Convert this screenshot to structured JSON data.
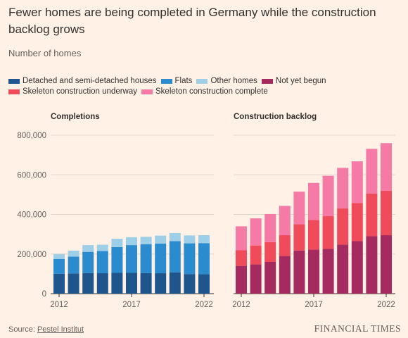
{
  "header": {
    "title": "Fewer homes are being completed in Germany while the construction backlog grows",
    "subtitle": "Number of homes"
  },
  "legend": [
    {
      "label": "Detached and semi-detached houses",
      "color": "#1e558c"
    },
    {
      "label": "Flats",
      "color": "#2a8bce"
    },
    {
      "label": "Other homes",
      "color": "#9dcfe8"
    },
    {
      "label": "Not yet begun",
      "color": "#a52a5f"
    },
    {
      "label": "Skeleton construction underway",
      "color": "#ef4b5b"
    },
    {
      "label": "Skeleton construction complete",
      "color": "#f57aa6"
    }
  ],
  "footer": {
    "source_prefix": "Source: ",
    "source_name": "Pestel Institut",
    "brand": "FINANCIAL TIMES"
  },
  "chart_data": [
    {
      "type": "bar",
      "stacked": true,
      "title": "Completions",
      "x": [
        2012,
        2013,
        2014,
        2015,
        2016,
        2017,
        2018,
        2019,
        2020,
        2021,
        2022
      ],
      "x_tick_labels": [
        "2012",
        "2017",
        "2022"
      ],
      "y_ticks": [
        0,
        200000,
        400000,
        600000,
        800000
      ],
      "y_tick_labels": [
        "0",
        "200,000",
        "400,000",
        "600,000",
        "800,000"
      ],
      "ylim": [
        0,
        820000
      ],
      "grid": true,
      "series": [
        {
          "name": "Detached and semi-detached houses",
          "color": "#1e558c",
          "values": [
            100000,
            102000,
            104000,
            103000,
            105000,
            105000,
            104000,
            103000,
            107000,
            99000,
            98000
          ]
        },
        {
          "name": "Flats",
          "color": "#2a8bce",
          "values": [
            75000,
            85000,
            107000,
            112000,
            130000,
            140000,
            145000,
            150000,
            158000,
            155000,
            157000
          ]
        },
        {
          "name": "Other homes",
          "color": "#9dcfe8",
          "values": [
            25000,
            30000,
            34000,
            32000,
            42000,
            40000,
            38000,
            40000,
            41000,
            40000,
            40000
          ]
        }
      ]
    },
    {
      "type": "bar",
      "stacked": true,
      "title": "Construction backlog",
      "x": [
        2012,
        2013,
        2014,
        2015,
        2016,
        2017,
        2018,
        2019,
        2020,
        2021,
        2022
      ],
      "x_tick_labels": [
        "2012",
        "2017",
        "2022"
      ],
      "ylim": [
        0,
        820000
      ],
      "grid": true,
      "series": [
        {
          "name": "Not yet begun",
          "color": "#a52a5f",
          "values": [
            140000,
            148000,
            160000,
            190000,
            218000,
            222000,
            226000,
            248000,
            265000,
            290000,
            295000
          ]
        },
        {
          "name": "Skeleton construction underway",
          "color": "#ef4b5b",
          "values": [
            80000,
            95000,
            100000,
            105000,
            132000,
            150000,
            165000,
            182000,
            193000,
            215000,
            225000
          ]
        },
        {
          "name": "Skeleton construction complete",
          "color": "#f57aa6",
          "values": [
            120000,
            137000,
            142000,
            148000,
            165000,
            187000,
            204000,
            205000,
            210000,
            226000,
            240000
          ]
        }
      ]
    }
  ]
}
